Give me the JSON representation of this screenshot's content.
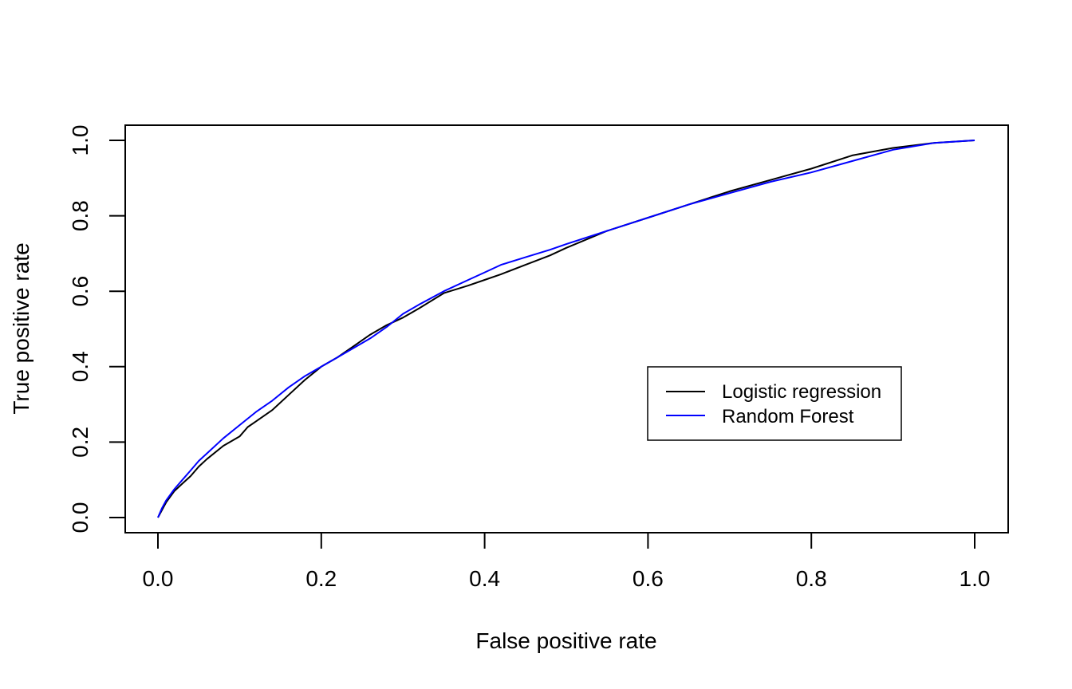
{
  "chart_data": {
    "type": "line",
    "title": "",
    "xlabel": "False positive rate",
    "ylabel": "True positive rate",
    "xlim": [
      0,
      1
    ],
    "ylim": [
      0,
      1
    ],
    "x_ticks": [
      "0.0",
      "0.2",
      "0.4",
      "0.6",
      "0.8",
      "1.0"
    ],
    "y_ticks": [
      "0.0",
      "0.2",
      "0.4",
      "0.6",
      "0.8",
      "1.0"
    ],
    "grid": false,
    "legend_position": "center-right",
    "series": [
      {
        "name": "Logistic regression",
        "color": "#000000",
        "x": [
          0,
          0.005,
          0.01,
          0.02,
          0.03,
          0.04,
          0.05,
          0.06,
          0.08,
          0.1,
          0.11,
          0.12,
          0.14,
          0.16,
          0.18,
          0.2,
          0.22,
          0.24,
          0.26,
          0.28,
          0.3,
          0.32,
          0.35,
          0.38,
          0.4,
          0.42,
          0.45,
          0.48,
          0.5,
          0.55,
          0.6,
          0.65,
          0.7,
          0.75,
          0.8,
          0.85,
          0.9,
          0.95,
          1.0
        ],
        "y": [
          0,
          0.02,
          0.04,
          0.07,
          0.09,
          0.11,
          0.135,
          0.155,
          0.19,
          0.215,
          0.24,
          0.255,
          0.285,
          0.325,
          0.365,
          0.4,
          0.425,
          0.455,
          0.485,
          0.51,
          0.53,
          0.555,
          0.595,
          0.615,
          0.63,
          0.645,
          0.67,
          0.695,
          0.715,
          0.76,
          0.795,
          0.83,
          0.865,
          0.895,
          0.925,
          0.96,
          0.98,
          0.993,
          1.0
        ]
      },
      {
        "name": "Random Forest",
        "color": "#0000ff",
        "x": [
          0,
          0.005,
          0.01,
          0.02,
          0.03,
          0.04,
          0.05,
          0.06,
          0.08,
          0.1,
          0.12,
          0.14,
          0.16,
          0.18,
          0.2,
          0.22,
          0.24,
          0.26,
          0.28,
          0.3,
          0.32,
          0.35,
          0.38,
          0.4,
          0.42,
          0.45,
          0.48,
          0.5,
          0.55,
          0.6,
          0.65,
          0.7,
          0.75,
          0.8,
          0.85,
          0.9,
          0.95,
          1.0
        ],
        "y": [
          0,
          0.025,
          0.045,
          0.075,
          0.1,
          0.125,
          0.15,
          0.17,
          0.21,
          0.245,
          0.28,
          0.31,
          0.345,
          0.375,
          0.4,
          0.425,
          0.45,
          0.475,
          0.505,
          0.54,
          0.565,
          0.6,
          0.63,
          0.65,
          0.67,
          0.69,
          0.71,
          0.725,
          0.76,
          0.795,
          0.83,
          0.86,
          0.89,
          0.915,
          0.945,
          0.975,
          0.993,
          1.0
        ]
      }
    ]
  }
}
